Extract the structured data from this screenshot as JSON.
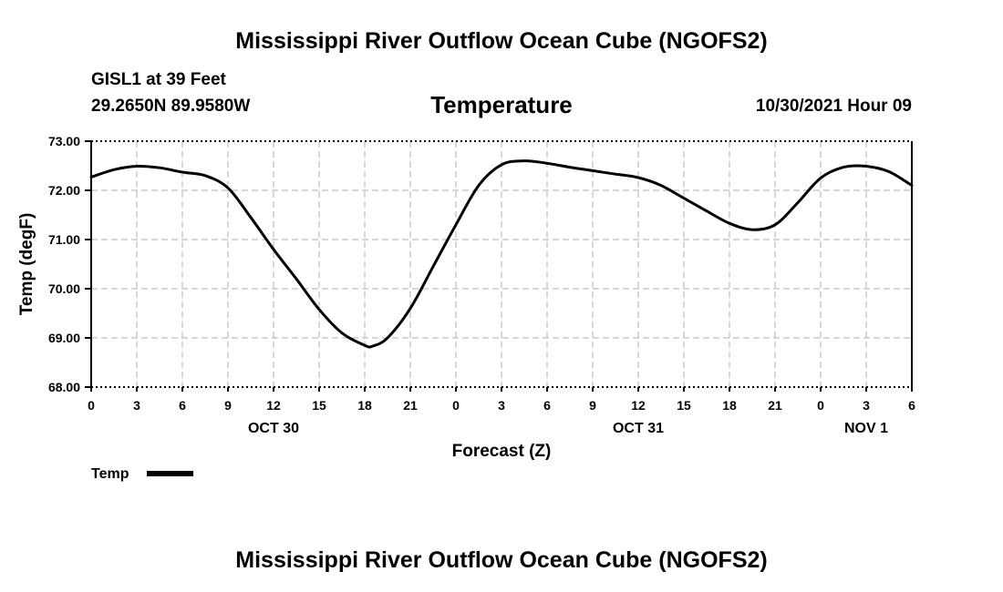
{
  "header": {
    "title": "Mississippi River Outflow Ocean Cube (NGOFS2)",
    "station": "GISL1 at 39 Feet",
    "coords": "29.2650N  89.9580W",
    "subtitle": "Temperature",
    "datetime": "10/30/2021 Hour 09"
  },
  "footer": {
    "title": "Mississippi River Outflow Ocean Cube (NGOFS2)"
  },
  "colors": {
    "line": "#000000",
    "grid": "#bdbdbd",
    "background": "#ffffff"
  },
  "chart_data": {
    "type": "line",
    "title": "Temperature",
    "xlabel": "Forecast (Z)",
    "ylabel": "Temp (degF)",
    "xlim": [
      0,
      54
    ],
    "ylim": [
      68.0,
      73.0
    ],
    "grid": true,
    "x_ticks": [
      0,
      3,
      6,
      9,
      12,
      15,
      18,
      21,
      24,
      27,
      30,
      33,
      36,
      39,
      42,
      45,
      48,
      51,
      54
    ],
    "x_tick_labels": [
      "0",
      "3",
      "6",
      "9",
      "12",
      "15",
      "18",
      "21",
      "0",
      "3",
      "6",
      "9",
      "12",
      "15",
      "18",
      "21",
      "0",
      "3",
      "6"
    ],
    "y_ticks": [
      68.0,
      69.0,
      70.0,
      71.0,
      72.0,
      73.0
    ],
    "y_tick_labels": [
      "68.00",
      "69.00",
      "70.00",
      "71.00",
      "72.00",
      "73.00"
    ],
    "date_labels": [
      {
        "x": 12,
        "label": "OCT 30"
      },
      {
        "x": 36,
        "label": "OCT 31"
      },
      {
        "x": 51,
        "label": "NOV 1"
      }
    ],
    "legend": {
      "label": "Temp",
      "placement": "bottom-left"
    },
    "series": [
      {
        "name": "Temp",
        "x": [
          0,
          1.5,
          3,
          4.5,
          6,
          7.5,
          9,
          10.5,
          12,
          13.5,
          15,
          16.5,
          18,
          18.5,
          19.5,
          21,
          22.5,
          24,
          25.5,
          27,
          28.5,
          30,
          31.5,
          33,
          34.5,
          36,
          37.5,
          39,
          40.5,
          42,
          43.5,
          45,
          46.5,
          48,
          49.5,
          51,
          52.5,
          54
        ],
        "values": [
          72.27,
          72.42,
          72.49,
          72.46,
          72.37,
          72.3,
          72.05,
          71.45,
          70.8,
          70.2,
          69.58,
          69.1,
          68.85,
          68.83,
          69.0,
          69.6,
          70.45,
          71.3,
          72.1,
          72.52,
          72.6,
          72.55,
          72.47,
          72.4,
          72.33,
          72.26,
          72.1,
          71.84,
          71.58,
          71.33,
          71.2,
          71.3,
          71.75,
          72.25,
          72.47,
          72.49,
          72.38,
          72.1
        ]
      }
    ]
  }
}
